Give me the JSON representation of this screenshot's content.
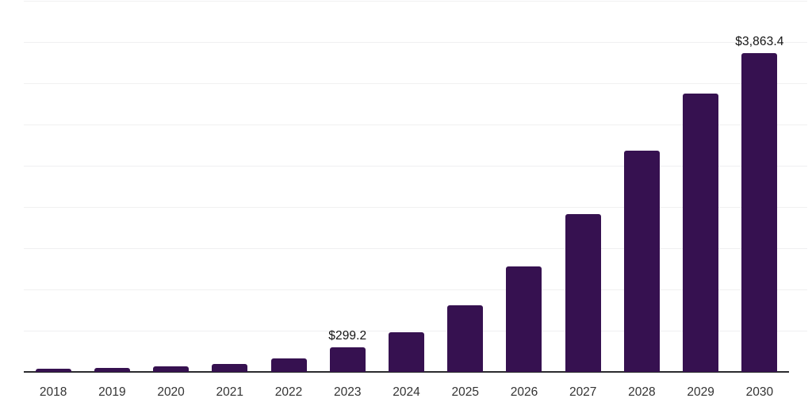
{
  "chart_data": {
    "type": "bar",
    "title": "",
    "xlabel": "",
    "ylabel": "",
    "categories": [
      "2018",
      "2019",
      "2020",
      "2021",
      "2022",
      "2023",
      "2024",
      "2025",
      "2026",
      "2027",
      "2028",
      "2029",
      "2030"
    ],
    "values": [
      40,
      51,
      70,
      99,
      167,
      299.2,
      482,
      809,
      1281,
      1916,
      2687,
      3371,
      3863.4
    ],
    "data_labels": [
      "",
      "",
      "",
      "",
      "",
      "$299.2",
      "",
      "",
      "",
      "",
      "",
      "",
      "$3,863.4"
    ],
    "ylim": [
      0,
      4500
    ],
    "gridline_interval": 500,
    "grid": true,
    "legend": "none",
    "y_axis_tick_labels_visible": false
  },
  "colors": {
    "bar": "#361150",
    "axis_line": "#2b2b2e",
    "gridline": "#f0f0f1",
    "value_label_text": "#141414",
    "tick_label_text": "#333333",
    "background": "#ffffff"
  }
}
